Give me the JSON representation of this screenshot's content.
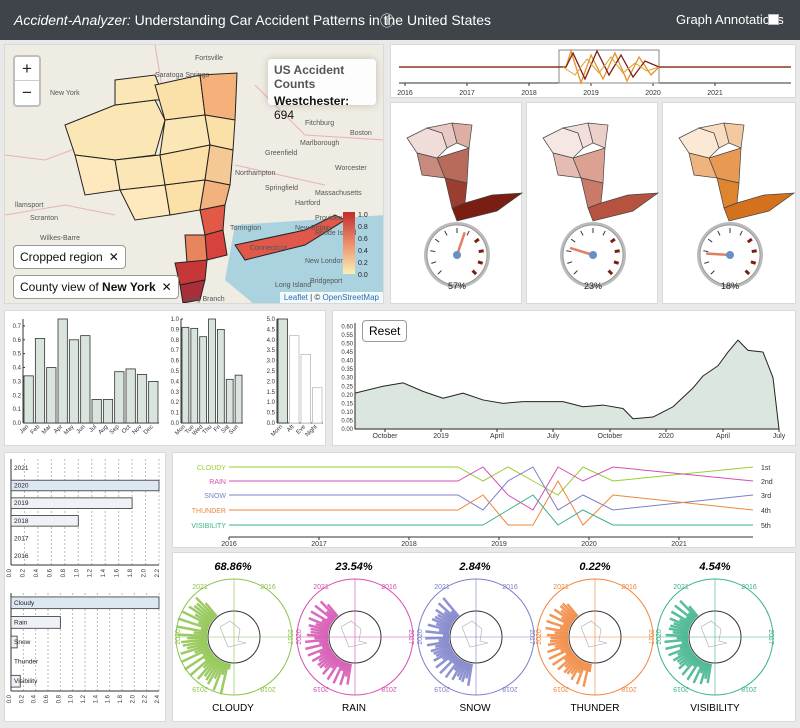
{
  "header": {
    "app_name": "Accident-Analyzer:",
    "subtitle": " Understanding Car Accident Patterns in the United States",
    "info_icon": "ⓘ",
    "annotations_label": "Graph Annotations"
  },
  "map": {
    "zoom_in": "+",
    "zoom_out": "−",
    "info_title": "US Accident Counts",
    "info_county": "Westchester:",
    "info_value": "694",
    "chip_region": "Cropped region",
    "chip_county_prefix": "County view of ",
    "chip_county_state": "New York",
    "close_glyph": "✕",
    "attribution_leaflet": "Leaflet",
    "attribution_sep": " | © ",
    "attribution_osm": "OpenStreetMap",
    "legend_ticks": [
      "1.0",
      "0.8",
      "0.6",
      "0.4",
      "0.2",
      "0.0"
    ],
    "place_labels": [
      "Fortsville",
      "Saratoga Springs",
      "New York",
      "Fitchburg",
      "Greenfield",
      "Marlborough",
      "Boston",
      "Northampton",
      "Springfield",
      "Worcester",
      "Massachusetts",
      "Hartford",
      "Providence",
      "Torrington",
      "New Britain",
      "Rhode Island",
      "Connecticut",
      "Scranton",
      "Wilkes-Barre",
      "Hazleton",
      "Bridgeport",
      "New London",
      "Long Island",
      "Long Branch",
      "Brunswick",
      "llamsport"
    ]
  },
  "timeline": {
    "ticks": [
      "2016",
      "2017",
      "2018",
      "2019",
      "2020",
      "2021"
    ],
    "colors": {
      "brown": "#7b1f12",
      "orange": "#e8922a",
      "gold": "#d9a030"
    }
  },
  "gauges": [
    {
      "value": 57,
      "label": "57%"
    },
    {
      "value": 23,
      "label": "23%"
    },
    {
      "value": 18,
      "label": "18%"
    }
  ],
  "month_chart": {
    "type": "bar",
    "categories": [
      "Jan",
      "Feb",
      "Mar",
      "Apr",
      "May",
      "Jun",
      "Jul",
      "Aug",
      "Sep",
      "Oct",
      "Nov",
      "Dec"
    ],
    "values": [
      0.34,
      0.61,
      0.4,
      0.75,
      0.6,
      0.63,
      0.17,
      0.17,
      0.37,
      0.39,
      0.35,
      0.3
    ],
    "ylim": [
      0,
      0.75
    ],
    "yticks": [
      "0.0",
      "0.1",
      "0.2",
      "0.3",
      "0.4",
      "0.5",
      "0.6",
      "0.7"
    ]
  },
  "weekday_chart": {
    "type": "bar",
    "categories": [
      "Mon",
      "Tue",
      "Wed",
      "Thu",
      "Fri",
      "Sat",
      "Sun"
    ],
    "values": [
      0.92,
      0.91,
      0.83,
      1.0,
      0.9,
      0.42,
      0.46
    ],
    "ylim": [
      0,
      1.0
    ],
    "yticks": [
      "0.0",
      "0.1",
      "0.2",
      "0.3",
      "0.4",
      "0.5",
      "0.6",
      "0.7",
      "0.8",
      "0.9",
      "1.0"
    ]
  },
  "daypart_chart": {
    "type": "bar",
    "categories": [
      "Morn",
      "Aft",
      "Eve",
      "Night"
    ],
    "values": [
      5.0,
      4.2,
      3.3,
      1.7
    ],
    "highlight": [
      true,
      false,
      false,
      false
    ],
    "ylim": [
      0,
      5.0
    ],
    "yticks": [
      "0.0",
      "0.5",
      "1.0",
      "1.5",
      "2.0",
      "2.5",
      "3.0",
      "3.5",
      "4.0",
      "4.5",
      "5.0"
    ]
  },
  "area_chart": {
    "type": "area",
    "reset_label": "Reset",
    "yticks": [
      "0.00",
      "0.05",
      "0.10",
      "0.15",
      "0.20",
      "0.25",
      "0.30",
      "0.35",
      "0.40",
      "0.45",
      "0.50",
      "0.55",
      "0.60"
    ],
    "xticks": [
      "October",
      "2019",
      "April",
      "July",
      "October",
      "2020",
      "April",
      "July"
    ],
    "ylim": [
      0,
      0.62
    ]
  },
  "year_chart": {
    "type": "bar",
    "categories": [
      "2021",
      "2020",
      "2019",
      "2018",
      "2017",
      "2016"
    ],
    "values": [
      0,
      2.2,
      1.8,
      1.0,
      0,
      0
    ],
    "highlight": [
      false,
      true,
      false,
      false,
      false,
      false
    ],
    "xticks": [
      "0.0",
      "0.2",
      "0.4",
      "0.6",
      "0.8",
      "1.0",
      "1.2",
      "1.4",
      "1.6",
      "1.8",
      "2.0",
      "2.2"
    ],
    "xlim": [
      0,
      2.2
    ]
  },
  "weather_chart": {
    "type": "bar",
    "categories": [
      "Cloudy",
      "Rain",
      "Snow",
      "Thunder",
      "Visibility"
    ],
    "values": [
      2.4,
      0.8,
      0.1,
      0,
      0.15
    ],
    "highlight": [
      true,
      false,
      false,
      false,
      false
    ],
    "xticks": [
      "0.0",
      "0.2",
      "0.4",
      "0.6",
      "0.8",
      "1.0",
      "1.2",
      "1.4",
      "1.6",
      "1.8",
      "2.0",
      "2.2",
      "2.4"
    ],
    "xlim": [
      0,
      2.4
    ]
  },
  "rank_chart": {
    "type": "line",
    "series": [
      "CLOUDY",
      "RAIN",
      "SNOW",
      "THUNDER",
      "VISIBILITY"
    ],
    "colors": [
      "#9acd32",
      "#d54fb0",
      "#7b7fc8",
      "#f0853a",
      "#3bb28a"
    ],
    "ranks": [
      "1st",
      "2nd",
      "3rd",
      "4th",
      "5th"
    ],
    "xticks": [
      "2016",
      "2017",
      "2018",
      "2019",
      "2020",
      "2021"
    ]
  },
  "radials": [
    {
      "pct": "68.86%",
      "name": "CLOUDY",
      "color": "#8bc34a",
      "years": [
        "2021",
        "2016",
        "2017",
        "2018",
        "2019",
        "2020"
      ]
    },
    {
      "pct": "23.54%",
      "name": "RAIN",
      "color": "#d54fb0",
      "years": [
        "2021",
        "2016",
        "2017",
        "2018",
        "2019",
        "2020"
      ]
    },
    {
      "pct": "2.84%",
      "name": "SNOW",
      "color": "#7b7fc8",
      "years": [
        "2021",
        "2016",
        "2017",
        "2018",
        "2019",
        "2020"
      ]
    },
    {
      "pct": "0.22%",
      "name": "THUNDER",
      "color": "#f0853a",
      "years": [
        "2021",
        "2016",
        "2017",
        "2018",
        "2019",
        "2020"
      ]
    },
    {
      "pct": "4.54%",
      "name": "VISIBILITY",
      "color": "#3bb28a",
      "years": [
        "2021",
        "2016",
        "2017",
        "2018",
        "2019",
        "2020"
      ]
    }
  ]
}
